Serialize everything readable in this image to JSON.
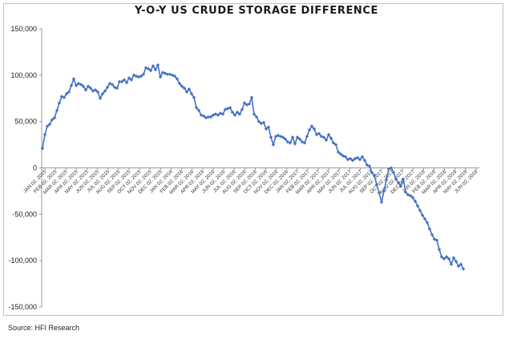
{
  "chart_data": {
    "type": "line",
    "title": "Y-O-Y US CRUDE STORAGE DIFFERENCE",
    "xlabel": "",
    "ylabel": "",
    "ylim": [
      -150000,
      150000
    ],
    "y_ticks": [
      150000,
      100000,
      50000,
      0,
      -50000,
      -100000,
      -150000
    ],
    "y_tick_labels": [
      "150,000",
      "100,000",
      "50,000",
      "0",
      "-50,000",
      "-100,000",
      "-150,000"
    ],
    "x_tick_labels": [
      "JAN 02, 2015",
      "FEB 02, 2015",
      "MAR 02, 2015",
      "APR 02, 2015",
      "MAY 02, 2015",
      "JUN 02, 2015",
      "JUL 02, 2015",
      "AUG 02, 2015",
      "SEP 02, 2015",
      "OCT 02, 2015",
      "NOV 02, 2015",
      "DEC 02, 2015",
      "JAN 02, 2016",
      "FEB 02, 2016",
      "MAR 02, 2016",
      "APR 02, 2016",
      "MAY 02, 2016",
      "JUN 02, 2016",
      "JUL 02, 2016",
      "AUG 02, 2016",
      "SEP 02, 2016",
      "OCT 02, 2016",
      "NOV 02, 2016",
      "DEC 02, 2016",
      "JAN 02, 2017",
      "FEB 02, 2017",
      "MAR 02, 2017",
      "APR 02, 2017",
      "MAY 02, 2017",
      "JUN 02, 2017",
      "JUL 02, 2017",
      "AUG 02, 2017",
      "SEP 02, 2017",
      "OCT 02, 2017",
      "NOV 02, 2017",
      "DEC 02, 2017",
      "JAN 02, 2018",
      "FEB 02, 2018",
      "MAR 02, 2018",
      "APR 02, 2018",
      "MAY 02, 2018",
      "JUN 02, 2018"
    ],
    "grid": false,
    "legend": "none",
    "colors": {
      "line": "#4472c4",
      "axis": "#999999"
    },
    "series": [
      {
        "values": [
          21000,
          36000,
          45000,
          47000,
          52000,
          54000,
          62000,
          70000,
          77000,
          76000,
          80000,
          82000,
          89000,
          96000,
          89000,
          91000,
          90000,
          88000,
          84000,
          88000,
          86000,
          83000,
          84000,
          82000,
          75000,
          80000,
          83000,
          87000,
          91000,
          90000,
          87000,
          86000,
          93000,
          93000,
          95000,
          92000,
          97000,
          95000,
          100000,
          99000,
          98000,
          99000,
          101000,
          108000,
          107000,
          105000,
          110000,
          106000,
          111000,
          98000,
          103000,
          102000,
          101000,
          101000,
          100000,
          99000,
          96000,
          91000,
          88000,
          86000,
          82000,
          85000,
          80000,
          76000,
          65000,
          62000,
          57000,
          56000,
          54000,
          55000,
          55000,
          57000,
          58000,
          57000,
          59000,
          58000,
          63000,
          64000,
          65000,
          60000,
          57000,
          60000,
          58000,
          63000,
          70000,
          68000,
          69000,
          76000,
          58000,
          55000,
          50000,
          48000,
          49000,
          42000,
          44000,
          33000,
          25000,
          34000,
          35000,
          34000,
          33000,
          31000,
          28000,
          27000,
          33000,
          26000,
          33000,
          31000,
          28000,
          27000,
          34000,
          41000,
          45000,
          42000,
          36000,
          37000,
          34000,
          33000,
          30000,
          36000,
          32000,
          27000,
          25000,
          17000,
          15000,
          13000,
          12000,
          9000,
          10000,
          8000,
          10000,
          11000,
          9000,
          12000,
          8000,
          3000,
          2000,
          -5000,
          -8000,
          -18000,
          -27000,
          -37000,
          -25000,
          -13000,
          -1000,
          0,
          -5000,
          -12000,
          -16000,
          -20000,
          -12000,
          -26000,
          -29000,
          -30000,
          -32000,
          -36000,
          -41000,
          -46000,
          -51000,
          -55000,
          -59000,
          -66000,
          -72000,
          -77000,
          -78000,
          -88000,
          -96000,
          -98000,
          -96000,
          -98000,
          -104000,
          -97000,
          -101000,
          -106000,
          -104000,
          -109000
        ]
      }
    ]
  },
  "source": "Source: HFI Research"
}
